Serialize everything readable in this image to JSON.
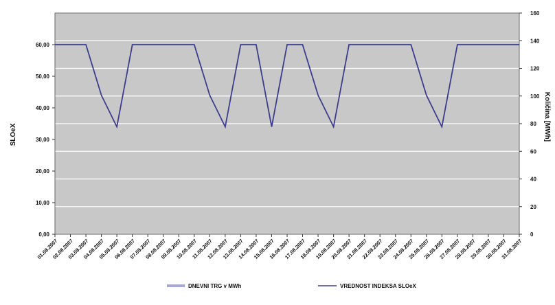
{
  "chart_data": {
    "type": "line",
    "ylabel": "SLOeX",
    "y2label": "Količina [MWh]",
    "ylim": [
      0,
      70
    ],
    "y2lim": [
      0,
      160
    ],
    "y_ticks": [
      "0,00",
      "10,00",
      "20,00",
      "30,00",
      "40,00",
      "50,00",
      "60,00"
    ],
    "y2_ticks": [
      "0",
      "20",
      "40",
      "60",
      "80",
      "100",
      "120",
      "140",
      "160"
    ],
    "categories": [
      "01.08.2007",
      "02.08.2007",
      "03.08.2007",
      "04.08.2007",
      "05.08.2007",
      "06.08.2007",
      "07.08.2007",
      "08.08.2007",
      "09.08.2007",
      "10.08.2007",
      "11.08.2007",
      "12.08.2007",
      "13.08.2007",
      "14.08.2007",
      "15.08.2007",
      "16.08.2007",
      "17.08.2007",
      "18.08.2007",
      "19.08.2007",
      "20.08.2007",
      "21.08.2007",
      "22.08.2007",
      "23.08.2007",
      "24.08.2007",
      "25.08.2007",
      "26.08.2007",
      "27.08.2007",
      "28.08.2007",
      "29.08.2007",
      "30.08.2007",
      "31.08.2007"
    ],
    "series": [
      {
        "name": "DNEVNI TRG v MWh",
        "axis": "right",
        "type": "bar",
        "values": [
          0,
          0,
          0,
          0,
          0,
          0,
          0,
          0,
          0,
          0,
          0,
          0,
          0,
          0,
          0,
          0,
          0,
          0,
          0,
          0,
          0,
          0,
          0,
          0,
          0,
          0,
          0,
          0,
          0,
          0,
          0
        ]
      },
      {
        "name": "VREDNOST INDEKSA SLOeX",
        "axis": "left",
        "type": "line",
        "values": [
          60,
          60,
          60,
          44,
          34,
          60,
          60,
          60,
          60,
          60,
          44,
          34,
          60,
          60,
          34,
          60,
          60,
          44,
          34,
          60,
          60,
          60,
          60,
          60,
          44,
          34,
          60,
          60,
          60,
          60,
          60
        ]
      }
    ],
    "grid": true,
    "legend_position": "bottom",
    "colors": {
      "line": "#3c3c8c",
      "bar": "#a8a8d8",
      "plot_bg": "#c8c8c8",
      "grid": "#ffffff"
    }
  }
}
